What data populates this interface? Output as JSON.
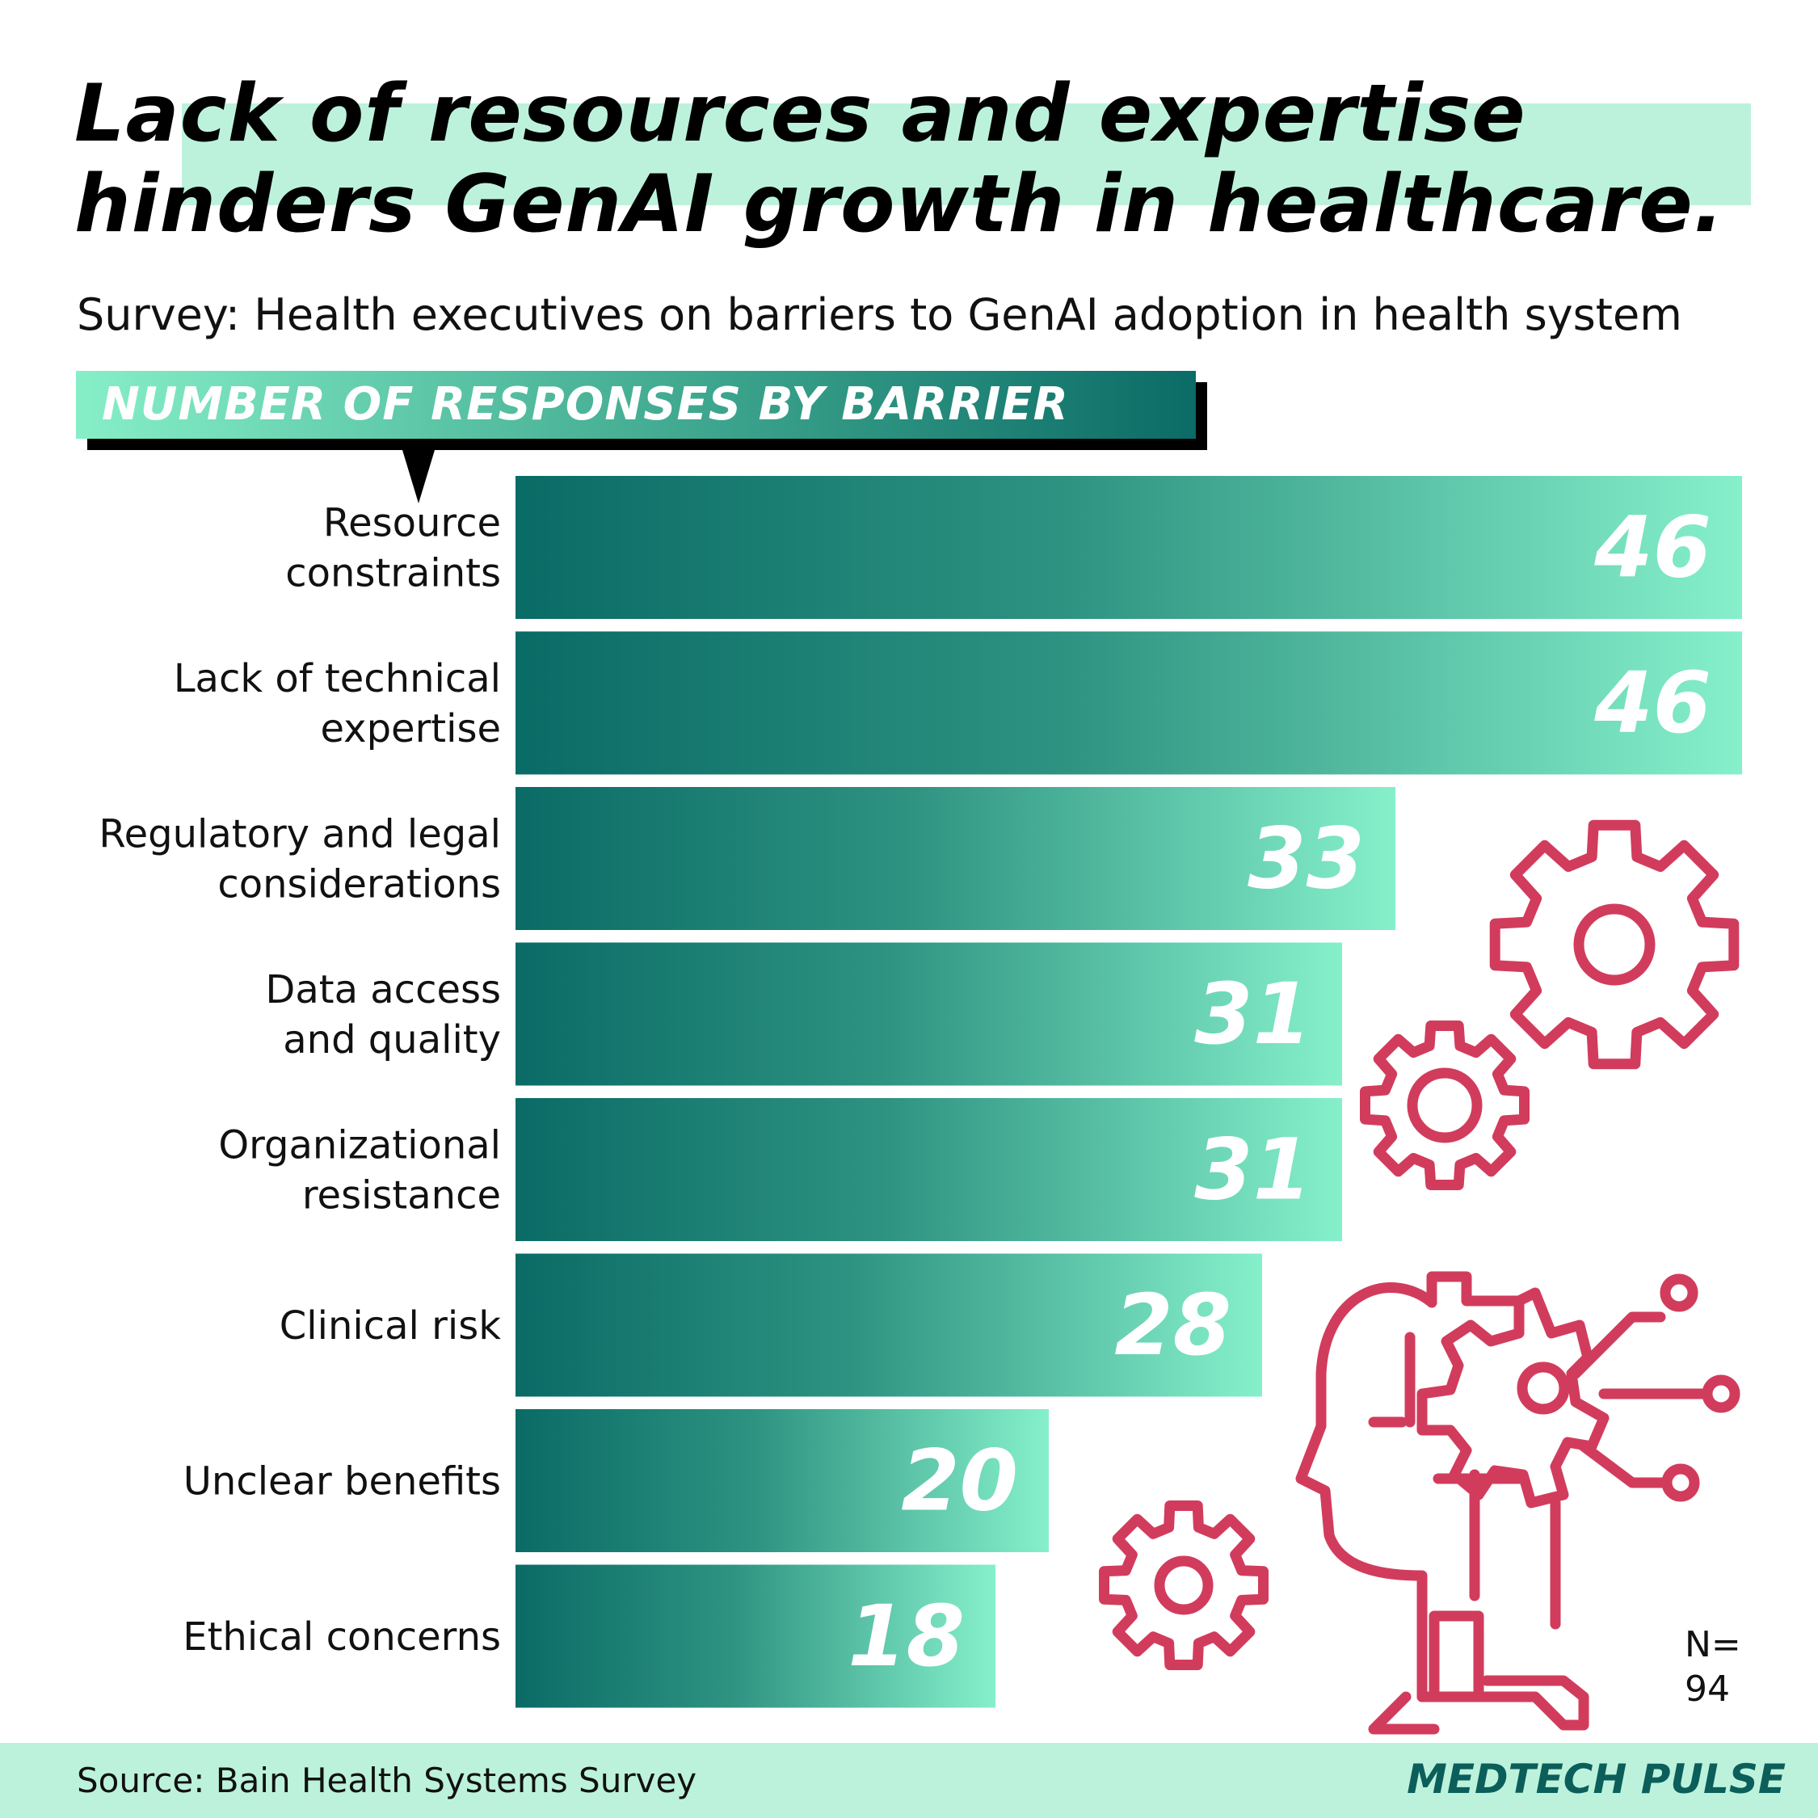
{
  "title": {
    "line1": "Lack of resources and expertise",
    "line2": "hinders GenAI growth in healthcare."
  },
  "subtitle": "Survey: Health executives on barriers to GenAI adoption in health system",
  "section_label": "NUMBER OF RESPONSES BY BARRIER",
  "sample_note": {
    "line1": "N=",
    "line2": "94"
  },
  "footer": {
    "source": "Source: Bain Health Systems Survey",
    "brand": "MEDTECH PULSE"
  },
  "colors": {
    "bar_dark": "#0a6b66",
    "bar_light": "#86f0cb",
    "highlight": "#bcf2dc",
    "icon": "#d23c5c"
  },
  "icons": [
    "gear-icon",
    "gear-icon",
    "gear-icon",
    "ai-head-icon"
  ],
  "chart_data": {
    "type": "bar",
    "orientation": "horizontal",
    "categories": [
      [
        "Resource",
        "constraints"
      ],
      [
        "Lack of technical",
        "expertise"
      ],
      [
        "Regulatory and legal",
        "considerations"
      ],
      [
        "Data access",
        "and quality"
      ],
      [
        "Organizational",
        "resistance"
      ],
      [
        "Clinical risk"
      ],
      [
        "Unclear benefits"
      ],
      [
        "Ethical concerns"
      ]
    ],
    "values": [
      46,
      46,
      33,
      31,
      31,
      28,
      20,
      18
    ],
    "data_labels": [
      "46",
      "46",
      "33",
      "31",
      "31",
      "28",
      "20",
      "18"
    ],
    "xlim": [
      0,
      46
    ],
    "grid": false,
    "legend": "none"
  }
}
